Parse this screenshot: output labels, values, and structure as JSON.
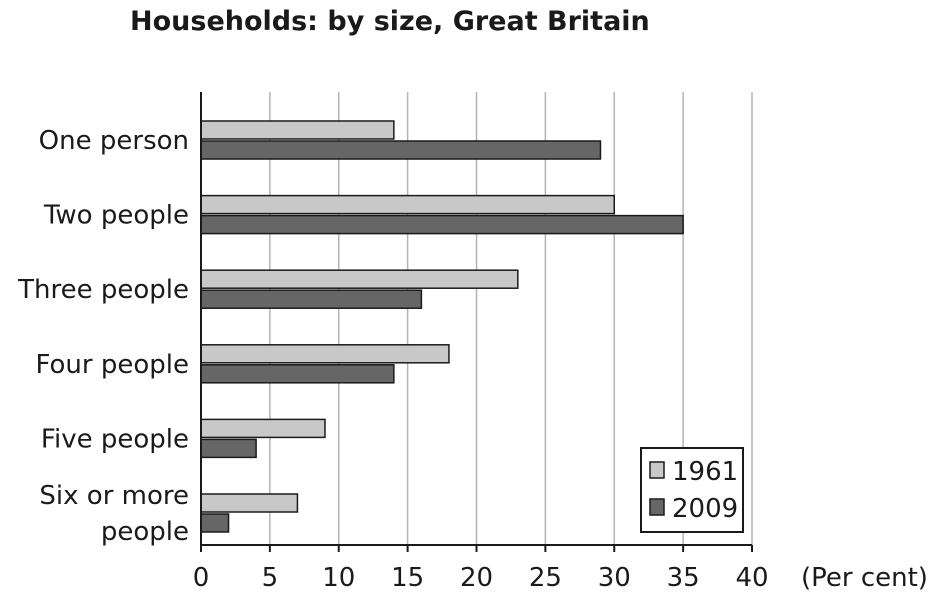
{
  "chart_data": {
    "type": "bar",
    "orientation": "horizontal",
    "title": "Households: by size, Great Britain",
    "unit_label": "(Per cent)",
    "categories": [
      [
        "One person"
      ],
      [
        "Two people"
      ],
      [
        "Three people"
      ],
      [
        "Four people"
      ],
      [
        "Five people"
      ],
      [
        "Six or more",
        "people"
      ]
    ],
    "series": [
      {
        "name": "1961",
        "values": [
          14,
          30,
          23,
          18,
          9,
          7
        ],
        "color": "#c8c8c8"
      },
      {
        "name": "2009",
        "values": [
          29,
          35,
          16,
          14,
          4,
          2
        ],
        "color": "#666666"
      }
    ],
    "xlim": [
      0,
      40
    ],
    "xticks": [
      0,
      5,
      10,
      15,
      20,
      25,
      30,
      35,
      40
    ],
    "grid": "vertical",
    "legend_position": "bottom-right"
  }
}
